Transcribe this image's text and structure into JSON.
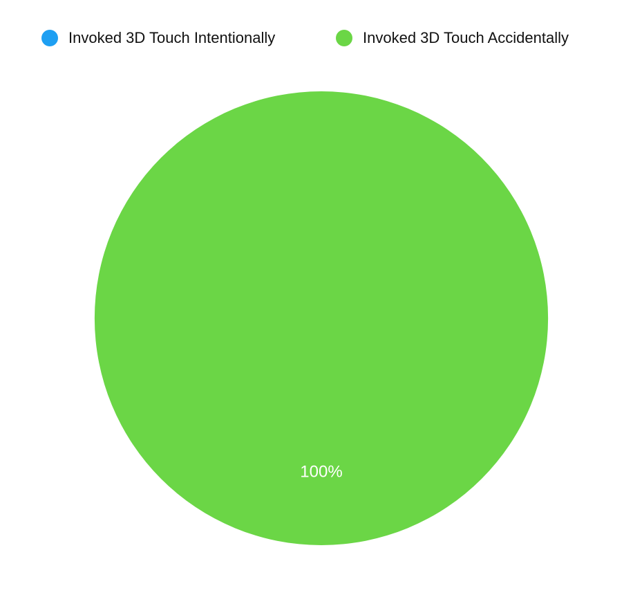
{
  "chart_data": {
    "type": "pie",
    "categories": [
      "Invoked 3D Touch Intentionally",
      "Invoked 3D Touch Accidentally"
    ],
    "values": [
      0,
      100
    ],
    "value_labels": [
      null,
      "100%"
    ],
    "colors": [
      "#1e9ff2",
      "#6bd646"
    ],
    "legend": "top"
  }
}
